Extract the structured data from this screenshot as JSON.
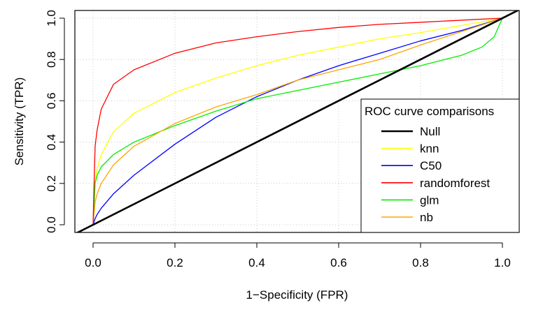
{
  "chart_data": {
    "type": "line",
    "title": "",
    "xlabel": "1−Specificity (FPR)",
    "ylabel": "Sensitivity (TPR)",
    "xlim": [
      0,
      1
    ],
    "ylim": [
      0,
      1
    ],
    "x_ticks": [
      "0.0",
      "0.2",
      "0.4",
      "0.6",
      "0.8",
      "1.0"
    ],
    "y_ticks": [
      "0.0",
      "0.2",
      "0.4",
      "0.6",
      "0.8",
      "1.0"
    ],
    "grid": true,
    "legend": {
      "title": "ROC curve comparisons",
      "position": "bottom-right"
    },
    "series": [
      {
        "name": "Null",
        "color": "#000000",
        "x": [
          0,
          1
        ],
        "y": [
          0,
          1
        ]
      },
      {
        "name": "knn",
        "color": "#ffff00",
        "x": [
          0,
          0.005,
          0.01,
          0.02,
          0.05,
          0.1,
          0.2,
          0.3,
          0.4,
          0.5,
          0.6,
          0.7,
          0.8,
          0.9,
          1.0
        ],
        "y": [
          0,
          0.21,
          0.27,
          0.34,
          0.45,
          0.54,
          0.64,
          0.71,
          0.77,
          0.82,
          0.86,
          0.9,
          0.93,
          0.965,
          1.0
        ]
      },
      {
        "name": "C50",
        "color": "#0000ff",
        "x": [
          0,
          0.005,
          0.01,
          0.02,
          0.05,
          0.1,
          0.2,
          0.3,
          0.4,
          0.5,
          0.6,
          0.7,
          0.8,
          0.9,
          1.0
        ],
        "y": [
          0,
          0.03,
          0.05,
          0.08,
          0.15,
          0.24,
          0.39,
          0.52,
          0.62,
          0.7,
          0.77,
          0.83,
          0.89,
          0.94,
          1.0
        ]
      },
      {
        "name": "randomforest",
        "color": "#ff0000",
        "x": [
          0,
          0.005,
          0.01,
          0.02,
          0.05,
          0.1,
          0.2,
          0.3,
          0.4,
          0.5,
          0.6,
          0.7,
          0.8,
          0.9,
          1.0
        ],
        "y": [
          0,
          0.38,
          0.46,
          0.56,
          0.68,
          0.75,
          0.83,
          0.88,
          0.91,
          0.935,
          0.955,
          0.97,
          0.98,
          0.99,
          1.0
        ]
      },
      {
        "name": "glm",
        "color": "#00ee00",
        "x": [
          0,
          0.005,
          0.01,
          0.02,
          0.05,
          0.1,
          0.2,
          0.3,
          0.4,
          0.5,
          0.6,
          0.7,
          0.8,
          0.9,
          0.95,
          0.98,
          1.0
        ],
        "y": [
          0,
          0.2,
          0.24,
          0.28,
          0.34,
          0.4,
          0.48,
          0.55,
          0.61,
          0.65,
          0.69,
          0.73,
          0.77,
          0.82,
          0.86,
          0.91,
          1.0
        ]
      },
      {
        "name": "nb",
        "color": "#ffa500",
        "x": [
          0,
          0.005,
          0.01,
          0.02,
          0.05,
          0.1,
          0.2,
          0.3,
          0.4,
          0.5,
          0.6,
          0.7,
          0.8,
          0.9,
          1.0
        ],
        "y": [
          0,
          0.11,
          0.15,
          0.2,
          0.29,
          0.38,
          0.49,
          0.57,
          0.63,
          0.7,
          0.75,
          0.8,
          0.87,
          0.935,
          1.0
        ]
      }
    ]
  }
}
